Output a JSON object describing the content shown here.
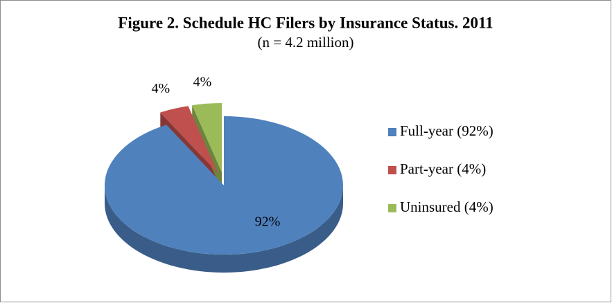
{
  "chart_data": {
    "type": "pie",
    "title": "Figure 2.  Schedule HC Filers by Insurance Status. 2011",
    "subtitle": "(n = 4.2 million)",
    "categories": [
      "Full-year (92%)",
      "Part-year (4%)",
      "Uninsured (4%)"
    ],
    "values": [
      92,
      4,
      4
    ],
    "value_labels": [
      "92%",
      "4%",
      "4%"
    ],
    "colors": [
      "#4f81bd",
      "#c0504d",
      "#9bbb59"
    ],
    "legend": "right"
  }
}
